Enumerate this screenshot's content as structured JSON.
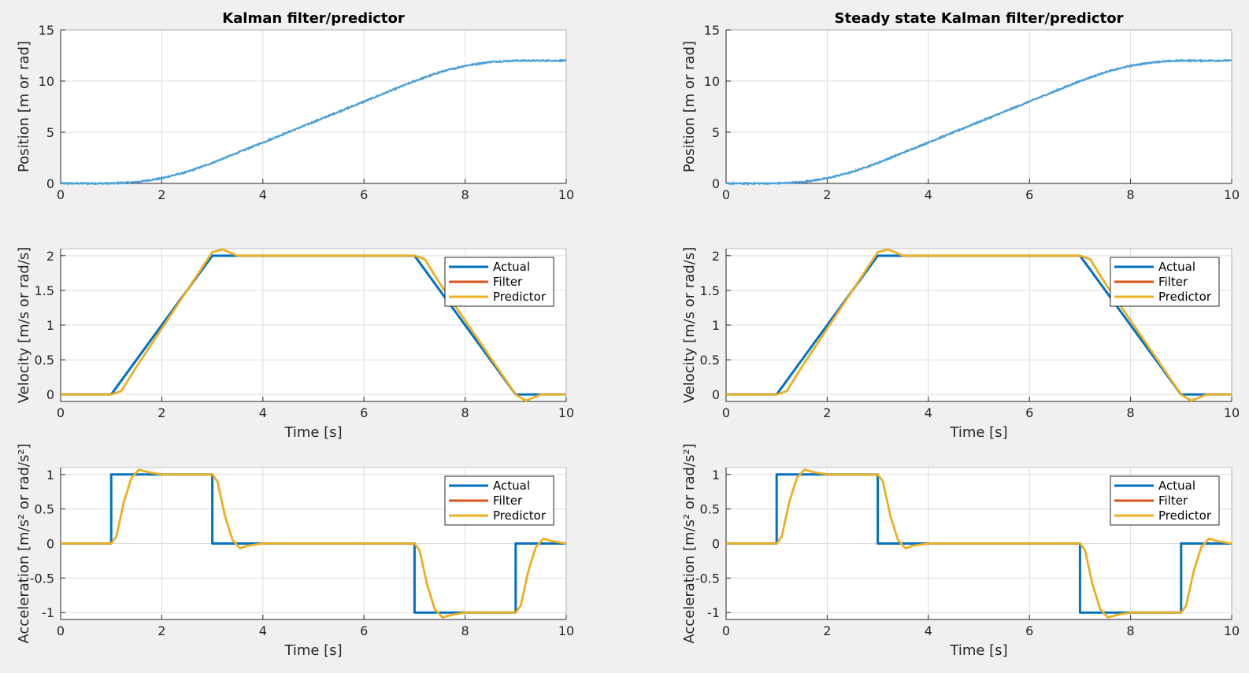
{
  "series_colors": {
    "Actual": "#0072bd",
    "Filter": "#d95319",
    "Predictor": "#edb120",
    "Measurement": "#4a9fd8"
  },
  "chart_data": [
    {
      "type": "scatter",
      "title": "Kalman filter/predictor",
      "xlabel": "",
      "ylabel": "Position [m or rad]",
      "xlim": [
        0,
        10
      ],
      "ylim": [
        0,
        15
      ],
      "xticks": [
        "0",
        "2",
        "4",
        "6",
        "8",
        "10"
      ],
      "yticks": [
        "0",
        "5",
        "10",
        "15"
      ],
      "grid": true,
      "series": [
        {
          "x": [
            0,
            1,
            1.5,
            2,
            2.5,
            3,
            3.5,
            4,
            5,
            6,
            7,
            7.5,
            8,
            8.5,
            9,
            10
          ],
          "y": [
            0,
            0,
            0.125,
            0.5,
            1.125,
            2,
            3,
            4,
            6,
            8,
            10,
            10.875,
            11.5,
            11.875,
            12,
            12
          ]
        }
      ]
    },
    {
      "type": "line",
      "title": "Steady state Kalman filter/predictor",
      "xlabel": "",
      "ylabel": "Position [m or rad]",
      "xlim": [
        0,
        10
      ],
      "ylim": [
        0,
        15
      ],
      "xticks": [
        "0",
        "2",
        "4",
        "6",
        "8",
        "10"
      ],
      "yticks": [
        "0",
        "5",
        "10",
        "15"
      ],
      "grid": true,
      "series": [
        {
          "x": [
            0,
            1,
            1.5,
            2,
            2.5,
            3,
            3.5,
            4,
            5,
            6,
            7,
            7.5,
            8,
            8.5,
            9,
            10
          ],
          "y": [
            0,
            0,
            0.125,
            0.5,
            1.125,
            2,
            3,
            4,
            6,
            8,
            10,
            10.875,
            11.5,
            11.875,
            12,
            12
          ]
        }
      ]
    },
    {
      "type": "line",
      "title": "",
      "xlabel": "Time [s]",
      "ylabel": "Velocity [m/s or rad/s]",
      "xlim": [
        0,
        10
      ],
      "ylim": [
        -0.1,
        2.1
      ],
      "xticks": [
        "0",
        "2",
        "4",
        "6",
        "8",
        "10"
      ],
      "yticks": [
        "0",
        "0.5",
        "1",
        "1.5",
        "2"
      ],
      "grid": true,
      "legend": "top-right",
      "series": [
        {
          "name": "Actual",
          "x": [
            0,
            1,
            3,
            7,
            9,
            10
          ],
          "y": [
            0,
            0,
            2,
            2,
            0,
            0
          ]
        },
        {
          "name": "Filter",
          "x": [
            0,
            1,
            1.2,
            1.5,
            3,
            3.2,
            3.5,
            4,
            7,
            7.2,
            7.5,
            9,
            9.2,
            9.5,
            10
          ],
          "y": [
            0,
            0,
            0.05,
            0.4,
            2.05,
            2.09,
            2.0,
            2.0,
            2.0,
            1.95,
            1.6,
            0.0,
            -0.09,
            0.0,
            0.0
          ]
        },
        {
          "name": "Predictor",
          "x": [
            0,
            1,
            1.2,
            1.5,
            3,
            3.2,
            3.5,
            4,
            7,
            7.2,
            7.5,
            9,
            9.2,
            9.5,
            10
          ],
          "y": [
            0,
            0,
            0.05,
            0.4,
            2.05,
            2.09,
            2.0,
            2.0,
            2.0,
            1.95,
            1.6,
            0.0,
            -0.09,
            0.0,
            0.0
          ]
        }
      ]
    },
    {
      "type": "line",
      "title": "",
      "xlabel": "Time [s]",
      "ylabel": "Velocity [m/s or rad/s]",
      "xlim": [
        0,
        10
      ],
      "ylim": [
        -0.1,
        2.1
      ],
      "xticks": [
        "0",
        "2",
        "4",
        "6",
        "8",
        "10"
      ],
      "yticks": [
        "0",
        "0.5",
        "1",
        "1.5",
        "2"
      ],
      "grid": true,
      "legend": "top-right",
      "series": [
        {
          "name": "Actual",
          "x": [
            0,
            1,
            3,
            7,
            9,
            10
          ],
          "y": [
            0,
            0,
            2,
            2,
            0,
            0
          ]
        },
        {
          "name": "Filter",
          "x": [
            0,
            1,
            1.2,
            1.5,
            3,
            3.2,
            3.5,
            4,
            7,
            7.2,
            7.5,
            9,
            9.2,
            9.5,
            10
          ],
          "y": [
            0,
            0,
            0.05,
            0.4,
            2.05,
            2.09,
            2.0,
            2.0,
            2.0,
            1.95,
            1.6,
            0.0,
            -0.09,
            0.0,
            0.0
          ]
        },
        {
          "name": "Predictor",
          "x": [
            0,
            1,
            1.2,
            1.5,
            3,
            3.2,
            3.5,
            4,
            7,
            7.2,
            7.5,
            9,
            9.2,
            9.5,
            10
          ],
          "y": [
            0,
            0,
            0.05,
            0.4,
            2.05,
            2.09,
            2.0,
            2.0,
            2.0,
            1.95,
            1.6,
            0.0,
            -0.09,
            0.0,
            0.0
          ]
        }
      ]
    },
    {
      "type": "line",
      "title": "",
      "xlabel": "Time [s]",
      "ylabel": "Acceleration [m/s² or rad/s²]",
      "xlim": [
        0,
        10
      ],
      "ylim": [
        -1.1,
        1.1
      ],
      "xticks": [
        "0",
        "2",
        "4",
        "6",
        "8",
        "10"
      ],
      "yticks": [
        "-1",
        "-0.5",
        "0",
        "0.5",
        "1"
      ],
      "grid": true,
      "legend": "top-right",
      "series": [
        {
          "name": "Actual",
          "x": [
            0,
            1,
            1,
            3,
            3,
            7,
            7,
            9,
            9,
            10
          ],
          "y": [
            0,
            0,
            1,
            1,
            0,
            0,
            -1,
            -1,
            0,
            0
          ]
        },
        {
          "name": "Filter",
          "x": [
            0,
            1,
            1.1,
            1.25,
            1.4,
            1.55,
            1.75,
            2,
            3,
            3.1,
            3.25,
            3.4,
            3.55,
            3.7,
            4,
            7,
            7.1,
            7.25,
            7.4,
            7.55,
            7.75,
            8,
            9,
            9.1,
            9.25,
            9.4,
            9.55,
            9.75,
            10
          ],
          "y": [
            0,
            0,
            0.1,
            0.6,
            0.95,
            1.07,
            1.03,
            1.0,
            1.0,
            0.9,
            0.4,
            0.05,
            -0.07,
            -0.03,
            0,
            0,
            -0.1,
            -0.6,
            -0.95,
            -1.07,
            -1.03,
            -1.0,
            -1.0,
            -0.9,
            -0.4,
            -0.05,
            0.07,
            0.03,
            0
          ]
        },
        {
          "name": "Predictor",
          "x": [
            0,
            1,
            1.1,
            1.25,
            1.4,
            1.55,
            1.75,
            2,
            3,
            3.1,
            3.25,
            3.4,
            3.55,
            3.7,
            4,
            7,
            7.1,
            7.25,
            7.4,
            7.55,
            7.75,
            8,
            9,
            9.1,
            9.25,
            9.4,
            9.55,
            9.75,
            10
          ],
          "y": [
            0,
            0,
            0.1,
            0.6,
            0.95,
            1.07,
            1.03,
            1.0,
            1.0,
            0.9,
            0.4,
            0.05,
            -0.07,
            -0.03,
            0,
            0,
            -0.1,
            -0.6,
            -0.95,
            -1.07,
            -1.03,
            -1.0,
            -1.0,
            -0.9,
            -0.4,
            -0.05,
            0.07,
            0.03,
            0
          ]
        }
      ]
    },
    {
      "type": "line",
      "title": "",
      "xlabel": "Time [s]",
      "ylabel": "Acceleration [m/s² or rad/s²]",
      "xlim": [
        0,
        10
      ],
      "ylim": [
        -1.1,
        1.1
      ],
      "xticks": [
        "0",
        "2",
        "4",
        "6",
        "8",
        "10"
      ],
      "yticks": [
        "-1",
        "-0.5",
        "0",
        "0.5",
        "1"
      ],
      "grid": true,
      "legend": "top-right",
      "series": [
        {
          "name": "Actual",
          "x": [
            0,
            1,
            1,
            3,
            3,
            7,
            7,
            9,
            9,
            10
          ],
          "y": [
            0,
            0,
            1,
            1,
            0,
            0,
            -1,
            -1,
            0,
            0
          ]
        },
        {
          "name": "Filter",
          "x": [
            0,
            1,
            1.1,
            1.25,
            1.4,
            1.55,
            1.75,
            2,
            3,
            3.1,
            3.25,
            3.4,
            3.55,
            3.7,
            4,
            7,
            7.1,
            7.25,
            7.4,
            7.55,
            7.75,
            8,
            9,
            9.1,
            9.25,
            9.4,
            9.55,
            9.75,
            10
          ],
          "y": [
            0,
            0,
            0.1,
            0.6,
            0.95,
            1.07,
            1.03,
            1.0,
            1.0,
            0.9,
            0.4,
            0.05,
            -0.07,
            -0.03,
            0,
            0,
            -0.1,
            -0.6,
            -0.95,
            -1.07,
            -1.03,
            -1.0,
            -1.0,
            -0.9,
            -0.4,
            -0.05,
            0.07,
            0.03,
            0
          ]
        },
        {
          "name": "Predictor",
          "x": [
            0,
            1,
            1.1,
            1.25,
            1.4,
            1.55,
            1.75,
            2,
            3,
            3.1,
            3.25,
            3.4,
            3.55,
            3.7,
            4,
            7,
            7.1,
            7.25,
            7.4,
            7.55,
            7.75,
            8,
            9,
            9.1,
            9.25,
            9.4,
            9.55,
            9.75,
            10
          ],
          "y": [
            0,
            0,
            0.1,
            0.6,
            0.95,
            1.07,
            1.03,
            1.0,
            1.0,
            0.9,
            0.4,
            0.05,
            -0.07,
            -0.03,
            0,
            0,
            -0.1,
            -0.6,
            -0.95,
            -1.07,
            -1.03,
            -1.0,
            -1.0,
            -0.9,
            -0.4,
            -0.05,
            0.07,
            0.03,
            0
          ]
        }
      ]
    }
  ]
}
